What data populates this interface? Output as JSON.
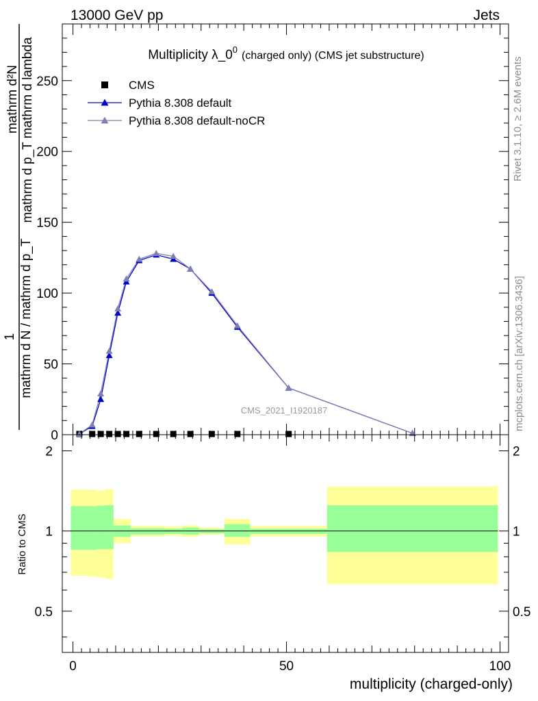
{
  "header": {
    "left": "13000 GeV pp",
    "right": "Jets"
  },
  "side": {
    "rivet": "Rivet 3.1.10, ≥ 2.6M events",
    "mcplots": "mcplots.cern.ch [arXiv:1306.3436]"
  },
  "chart_data": [
    {
      "type": "line",
      "title": "Multiplicity λ_0",
      "title_sup": "0",
      "title_suffix": "(charged only) (CMS jet substructure)",
      "ylabel_num": "mathrm d²N",
      "ylabel_num_sub": "mathrm d p_T mathrm d lambda",
      "ylabel_one": "1",
      "ylabel_den": "mathrm d N / mathrm d p_T",
      "ylim": [
        0,
        290
      ],
      "xlim": [
        -2.5,
        102
      ],
      "yticks": [
        0,
        50,
        100,
        150,
        200,
        250
      ],
      "watermark": "CMS_2021_I1920187",
      "legend_position": "top-left",
      "series": [
        {
          "name": "CMS",
          "marker": "square",
          "color": "#000000",
          "x": [
            1.5,
            4.5,
            6.5,
            8.5,
            10.5,
            12.5,
            15.5,
            19.5,
            23.5,
            27.5,
            32.5,
            38.5,
            50.5
          ],
          "values": [
            0.5,
            0.5,
            0.5,
            0.5,
            0.5,
            0.5,
            0.5,
            0.5,
            0.5,
            0.5,
            0.5,
            0.5,
            0.5
          ]
        },
        {
          "name": "Pythia 8.308 default",
          "marker": "triangle",
          "color": "#0000cc",
          "x": [
            1.5,
            4.5,
            6.5,
            8.5,
            10.5,
            12.5,
            15.5,
            19.5,
            23.5,
            27.5,
            32.5,
            38.5,
            50.5,
            79.5
          ],
          "values": [
            0.5,
            6,
            25,
            56,
            86,
            108,
            123,
            127,
            124,
            117,
            100,
            76,
            33,
            1
          ]
        },
        {
          "name": "Pythia 8.308 default-noCR",
          "marker": "triangle",
          "color": "#7f7fb2",
          "x": [
            1.5,
            4.5,
            6.5,
            8.5,
            10.5,
            12.5,
            15.5,
            19.5,
            23.5,
            27.5,
            32.5,
            38.5,
            50.5,
            79.5
          ],
          "values": [
            0.5,
            7,
            29,
            59,
            89,
            110,
            124,
            128,
            126,
            117,
            101,
            77,
            33,
            1
          ]
        }
      ]
    },
    {
      "type": "area",
      "ylabel": "Ratio to CMS",
      "xlabel": "multiplicity (charged-only)",
      "xlim": [
        -2.5,
        102
      ],
      "ylim": [
        0.35,
        2.3
      ],
      "yticks": [
        0.5,
        1,
        2
      ],
      "xticks": [
        0,
        50,
        100
      ],
      "bins": [
        {
          "xlo": -0.5,
          "xhi": 3.5,
          "g_lo": 0.85,
          "g_hi": 1.24,
          "y_lo": 0.68,
          "y_hi": 1.43
        },
        {
          "xlo": 3.5,
          "xhi": 5.5,
          "g_lo": 0.85,
          "g_hi": 1.24,
          "y_lo": 0.675,
          "y_hi": 1.43
        },
        {
          "xlo": 5.5,
          "xhi": 7.5,
          "g_lo": 0.855,
          "g_hi": 1.245,
          "y_lo": 0.67,
          "y_hi": 1.42
        },
        {
          "xlo": 7.5,
          "xhi": 9.5,
          "g_lo": 0.855,
          "g_hi": 1.25,
          "y_lo": 0.66,
          "y_hi": 1.44
        },
        {
          "xlo": 9.5,
          "xhi": 13.5,
          "g_lo": 0.95,
          "g_hi": 1.05,
          "y_lo": 0.9,
          "y_hi": 1.11
        },
        {
          "xlo": 13.5,
          "xhi": 21.5,
          "g_lo": 0.97,
          "g_hi": 1.025,
          "y_lo": 0.955,
          "y_hi": 1.045
        },
        {
          "xlo": 21.5,
          "xhi": 25.5,
          "g_lo": 0.975,
          "g_hi": 1.02,
          "y_lo": 0.96,
          "y_hi": 1.04
        },
        {
          "xlo": 25.5,
          "xhi": 29.5,
          "g_lo": 0.97,
          "g_hi": 1.03,
          "y_lo": 0.95,
          "y_hi": 1.05
        },
        {
          "xlo": 29.5,
          "xhi": 35.5,
          "g_lo": 0.98,
          "g_hi": 1.015,
          "y_lo": 0.97,
          "y_hi": 1.03
        },
        {
          "xlo": 35.5,
          "xhi": 41.5,
          "g_lo": 0.95,
          "g_hi": 1.06,
          "y_lo": 0.89,
          "y_hi": 1.11
        },
        {
          "xlo": 41.5,
          "xhi": 59.5,
          "g_lo": 0.975,
          "g_hi": 1.02,
          "y_lo": 0.955,
          "y_hi": 1.045
        },
        {
          "xlo": 59.5,
          "xhi": 99.5,
          "g_lo": 0.835,
          "g_hi": 1.25,
          "y_lo": 0.63,
          "y_hi": 1.47
        }
      ],
      "colors": {
        "inner": "#99ff99",
        "outer": "#ffff99",
        "line": "#000000"
      }
    }
  ]
}
